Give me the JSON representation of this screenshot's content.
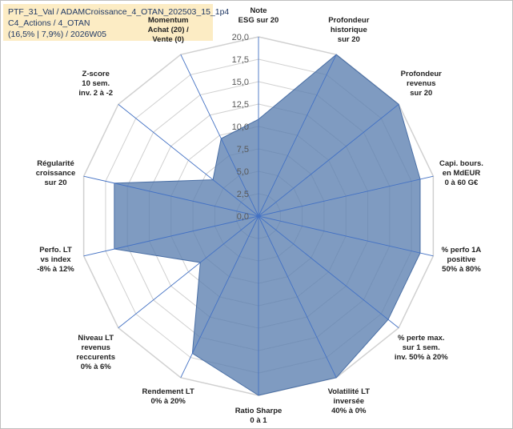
{
  "header": {
    "line1": "PTF_31_Val / ADAMCroissance_4_OTAN_202503_15_1p4",
    "line2": "C4_Actions / 4_OTAN",
    "line3": "(16,5% | 7,9%) / 2026W05"
  },
  "chart_data": {
    "type": "radar",
    "title": "",
    "rmin": 0,
    "rmax": 20,
    "tick_values": [
      0,
      2.5,
      5,
      7.5,
      10,
      12.5,
      15,
      17.5,
      20
    ],
    "tick_labels": [
      "0,0",
      "2,5",
      "5,0",
      "7,5",
      "10,0",
      "12,5",
      "15,0",
      "17,5",
      "20,0"
    ],
    "categories": [
      {
        "label": [
          "Note",
          "ESG sur 20"
        ],
        "anchor": "middle"
      },
      {
        "label": [
          "Profondeur",
          "historique",
          "sur 20"
        ],
        "anchor": "middle"
      },
      {
        "label": [
          "Profondeur",
          "revenus",
          "sur 20"
        ],
        "anchor": "middle"
      },
      {
        "label": [
          "Capi. bours.",
          "en MdEUR",
          "0 à 60 G€"
        ],
        "anchor": "middle"
      },
      {
        "label": [
          "% perfo 1A",
          "positive",
          "50% à 80%"
        ],
        "anchor": "middle"
      },
      {
        "label": [
          "% perte max.",
          "sur 1 sem.",
          "inv. 50% à 20%"
        ],
        "anchor": "middle"
      },
      {
        "label": [
          "Volatilité LT",
          "inversée",
          "40% à 0%"
        ],
        "anchor": "middle"
      },
      {
        "label": [
          "Ratio Sharpe",
          "0 à 1"
        ],
        "anchor": "middle"
      },
      {
        "label": [
          "Rendement LT",
          "0% à 20%"
        ],
        "anchor": "middle"
      },
      {
        "label": [
          "Niveau LT",
          "revenus",
          "reccurents",
          "0% à 6%"
        ],
        "anchor": "middle"
      },
      {
        "label": [
          "Perfo. LT",
          "vs index",
          "-8% à 12%"
        ],
        "anchor": "middle"
      },
      {
        "label": [
          "Régularité",
          "croissance",
          "sur 20"
        ],
        "anchor": "middle"
      },
      {
        "label": [
          "Z-score",
          "10 sem.",
          "inv. 2 à -2"
        ],
        "anchor": "middle"
      },
      {
        "label": [
          "Momentum",
          "Achat (20) /",
          "Vente (0)"
        ],
        "anchor": "middle"
      }
    ],
    "series": [
      {
        "name": "PTF_31_Val",
        "color": "#5b7fb0",
        "values": [
          10.8,
          20,
          20,
          18.5,
          18.5,
          18.5,
          20,
          20,
          17,
          8.3,
          16.5,
          16.5,
          6.5,
          9.6
        ]
      }
    ]
  }
}
